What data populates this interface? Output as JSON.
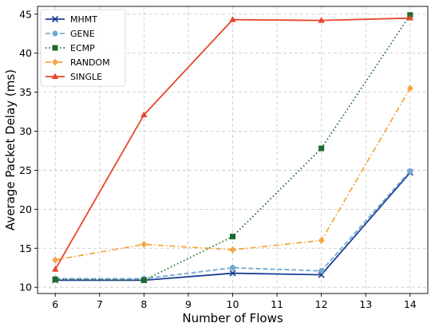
{
  "chart_data": {
    "type": "line",
    "title": "",
    "xlabel": "Number of Flows",
    "ylabel": "Average Packet Delay (ms)",
    "x": [
      6,
      8,
      10,
      12,
      14
    ],
    "xlim": [
      5.6,
      14.4
    ],
    "ylim": [
      9.2,
      46.0
    ],
    "xticks": [
      6,
      7,
      8,
      9,
      10,
      11,
      12,
      13,
      14
    ],
    "yticks": [
      10,
      15,
      20,
      25,
      30,
      35,
      40,
      45
    ],
    "grid": true,
    "legend_position": "top-left",
    "series": [
      {
        "name": "MHMT",
        "values": [
          10.9,
          10.9,
          11.8,
          11.6,
          24.7
        ],
        "color": "#1b3f94",
        "dash": "solid",
        "marker": "x"
      },
      {
        "name": "GENE",
        "values": [
          11.1,
          11.1,
          12.5,
          12.1,
          24.9
        ],
        "color": "#74a9cf",
        "dash": "dashed",
        "marker": "circle"
      },
      {
        "name": "ECMP",
        "values": [
          11.0,
          10.9,
          16.5,
          27.8,
          44.9
        ],
        "color": "#1a6b2b",
        "dash": "dotted",
        "marker": "square"
      },
      {
        "name": "RANDOM",
        "values": [
          13.5,
          15.5,
          14.8,
          16.0,
          35.5
        ],
        "color": "#f4a742",
        "dash": "dashdot",
        "marker": "diamond"
      },
      {
        "name": "SINGLE",
        "values": [
          12.3,
          32.1,
          44.3,
          44.2,
          44.5
        ],
        "color": "#e8452d",
        "dash": "solid",
        "marker": "triangle"
      }
    ]
  }
}
